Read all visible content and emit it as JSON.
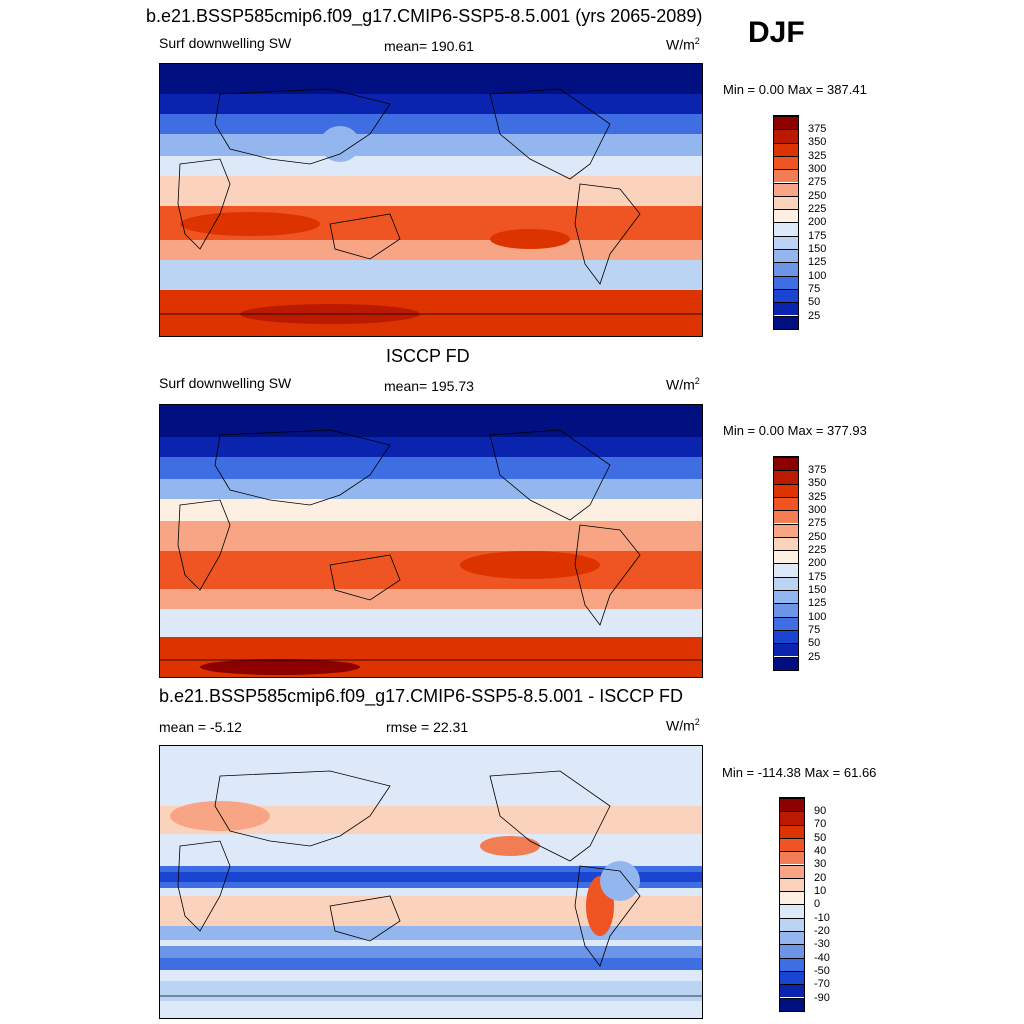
{
  "header": {
    "title": "b.e21.BSSP585cmip6.f09_g17.CMIP6-SSP5-8.5.001 (yrs 2065-2089)",
    "season": "DJF"
  },
  "panels": [
    {
      "title": "",
      "left_label": "Surf downwelling SW",
      "center_label": "mean= 190.61",
      "units": "W/m",
      "units_sup": "2",
      "minmax": "Min =   0.00 Max = 387.41",
      "colorbar_labels": [
        "375",
        "350",
        "325",
        "300",
        "275",
        "250",
        "225",
        "200",
        "175",
        "150",
        "125",
        "100",
        "75",
        "50",
        "25"
      ],
      "colors": [
        "#8c0000",
        "#bb1a00",
        "#dd3300",
        "#ee5522",
        "#f27d55",
        "#f7a585",
        "#fbd3bd",
        "#fdf0e2",
        "#dde9f8",
        "#bcd4f4",
        "#94b6ee",
        "#6c95e8",
        "#3f6ee2",
        "#1a44d2",
        "#0a24b0",
        "#001080"
      ]
    },
    {
      "title": "ISCCP FD",
      "left_label": "Surf downwelling SW",
      "center_label": "mean= 195.73",
      "units": "W/m",
      "units_sup": "2",
      "minmax": "Min =   0.00 Max = 377.93",
      "colorbar_labels": [
        "375",
        "350",
        "325",
        "300",
        "275",
        "250",
        "225",
        "200",
        "175",
        "150",
        "125",
        "100",
        "75",
        "50",
        "25"
      ],
      "colors": [
        "#8c0000",
        "#bb1a00",
        "#dd3300",
        "#ee5522",
        "#f27d55",
        "#f7a585",
        "#fbd3bd",
        "#fdf0e2",
        "#dde9f8",
        "#bcd4f4",
        "#94b6ee",
        "#6c95e8",
        "#3f6ee2",
        "#1a44d2",
        "#0a24b0",
        "#001080"
      ]
    },
    {
      "title": "b.e21.BSSP585cmip6.f09_g17.CMIP6-SSP5-8.5.001 - ISCCP FD",
      "left_label": "mean =  -5.12",
      "center_label": "rmse =  22.31",
      "units": "W/m",
      "units_sup": "2",
      "minmax": "Min = -114.38 Max =  61.66",
      "colorbar_labels": [
        "90",
        "70",
        "50",
        "40",
        "30",
        "20",
        "10",
        "0",
        "-10",
        "-20",
        "-30",
        "-40",
        "-50",
        "-70",
        "-90"
      ],
      "colors": [
        "#8c0000",
        "#bb1a00",
        "#dd3300",
        "#ee5522",
        "#f27d55",
        "#f7a585",
        "#fbd3bd",
        "#fdf0e2",
        "#dde9f8",
        "#bcd4f4",
        "#94b6ee",
        "#6c95e8",
        "#3f6ee2",
        "#1a44d2",
        "#0a24b0",
        "#001080"
      ]
    }
  ]
}
